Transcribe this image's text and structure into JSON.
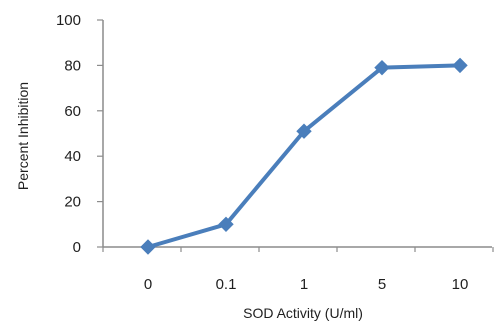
{
  "chart_data": {
    "type": "line",
    "categories": [
      "0",
      "0.1",
      "1",
      "5",
      "10"
    ],
    "series": [
      {
        "values": [
          0,
          10,
          51,
          79,
          80
        ]
      }
    ],
    "xlabel": "SOD  Activity (U/ml)",
    "ylabel": "Percent  Inhibition",
    "ylim": [
      0,
      100
    ],
    "yticks": [
      0,
      20,
      40,
      60,
      80,
      100
    ],
    "grid": false,
    "legend": "none",
    "marker": "diamond",
    "colors": {
      "series": "#4a7ebb",
      "axis": "#8c8c8c",
      "text": "#1f1f1f"
    }
  }
}
